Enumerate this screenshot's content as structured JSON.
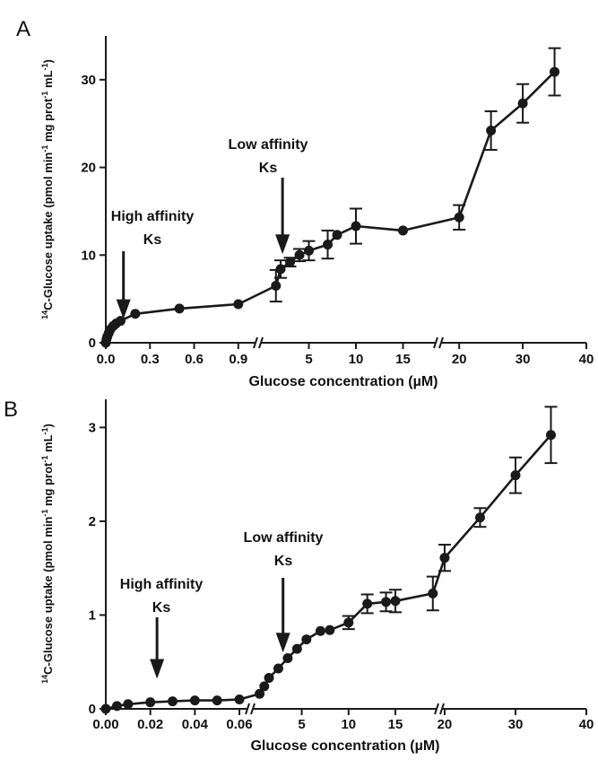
{
  "colors": {
    "ink": "#1a1a1a",
    "background": "#ffffff"
  },
  "chart_data": [
    {
      "panel": "A",
      "type": "line",
      "xlabel": "Glucose concentration (µM)",
      "ylabel": {
        "sup": "14",
        "main": "C-Glucose uptake (pmol min",
        "sup1": "-1",
        "mid": " mg prot",
        "sup2": "-1",
        "end": " mL",
        "sup3": "-1",
        "close": ")"
      },
      "ylim": [
        0,
        35
      ],
      "yticks": [
        "0",
        "10",
        "20",
        "30"
      ],
      "x_axis": "broken",
      "x_segments": [
        {
          "range": [
            0,
            0.95
          ],
          "ticks": [
            "0.0",
            "0.3",
            "0.6",
            "0.9"
          ]
        },
        {
          "range": [
            0.95,
            18
          ],
          "ticks": [
            "5",
            "10",
            "15"
          ]
        },
        {
          "range": [
            18,
            40
          ],
          "ticks": [
            "20",
            "30",
            "40"
          ]
        }
      ],
      "series": [
        {
          "points": [
            {
              "x": 0.0,
              "y": 0.0
            },
            {
              "x": 0.005,
              "y": 0.4
            },
            {
              "x": 0.01,
              "y": 0.7
            },
            {
              "x": 0.02,
              "y": 1.1
            },
            {
              "x": 0.03,
              "y": 1.5
            },
            {
              "x": 0.05,
              "y": 1.9
            },
            {
              "x": 0.07,
              "y": 2.2
            },
            {
              "x": 0.1,
              "y": 2.5
            },
            {
              "x": 0.2,
              "y": 3.3
            },
            {
              "x": 0.5,
              "y": 3.9
            },
            {
              "x": 0.9,
              "y": 4.4
            },
            {
              "x": 1.5,
              "y": 6.5,
              "err": 1.8
            },
            {
              "x": 2.0,
              "y": 8.4,
              "err": 1.0
            },
            {
              "x": 3.0,
              "y": 9.2,
              "err": 0.5
            },
            {
              "x": 4.0,
              "y": 10.0,
              "err": 0.7
            },
            {
              "x": 5.0,
              "y": 10.5,
              "err": 1.1
            },
            {
              "x": 7.0,
              "y": 11.2,
              "err": 1.6
            },
            {
              "x": 8.0,
              "y": 12.3
            },
            {
              "x": 10.0,
              "y": 13.3,
              "err": 2.0
            },
            {
              "x": 15.0,
              "y": 12.8
            },
            {
              "x": 20.0,
              "y": 14.3,
              "err": 1.4
            },
            {
              "x": 25.0,
              "y": 24.2,
              "err": 2.2
            },
            {
              "x": 30.0,
              "y": 27.3,
              "err": 2.2
            },
            {
              "x": 35.0,
              "y": 30.9,
              "err": 2.7
            }
          ]
        }
      ],
      "annotations": [
        {
          "lines": [
            "High affinity",
            "Ks"
          ],
          "x": 0.12,
          "arrow_y": 2.7
        },
        {
          "lines": [
            "Low affinity",
            "Ks"
          ],
          "x": 2.2,
          "arrow_y": 10.1
        }
      ]
    },
    {
      "panel": "B",
      "type": "line",
      "xlabel": "Glucose concentration (µM)",
      "ylabel": {
        "sup": "14",
        "main": "C-Glucose uptake (pmol min",
        "sup1": "-1",
        "mid": " mg prot",
        "sup2": "-1",
        "end": " mL",
        "sup3": "-1",
        "close": ")"
      },
      "ylim": [
        0,
        3.3
      ],
      "yticks": [
        "0",
        "1",
        "2",
        "3"
      ],
      "x_axis": "broken",
      "x_segments": [
        {
          "range": [
            0,
            0.062
          ],
          "ticks": [
            "0.00",
            "0.02",
            "0.04",
            "0.06"
          ]
        },
        {
          "range": [
            0.062,
            19.5
          ],
          "ticks": [
            "5",
            "10",
            "15"
          ]
        },
        {
          "range": [
            19.5,
            40
          ],
          "ticks": [
            "20",
            "30",
            "40"
          ]
        }
      ],
      "series": [
        {
          "points": [
            {
              "x": 0.0,
              "y": 0.0
            },
            {
              "x": 0.005,
              "y": 0.03
            },
            {
              "x": 0.01,
              "y": 0.05
            },
            {
              "x": 0.02,
              "y": 0.07
            },
            {
              "x": 0.03,
              "y": 0.08
            },
            {
              "x": 0.04,
              "y": 0.09
            },
            {
              "x": 0.05,
              "y": 0.09
            },
            {
              "x": 0.06,
              "y": 0.1
            },
            {
              "x": 0.5,
              "y": 0.16
            },
            {
              "x": 1.0,
              "y": 0.24
            },
            {
              "x": 1.5,
              "y": 0.33
            },
            {
              "x": 2.5,
              "y": 0.43
            },
            {
              "x": 3.5,
              "y": 0.54
            },
            {
              "x": 4.5,
              "y": 0.64
            },
            {
              "x": 5.5,
              "y": 0.74
            },
            {
              "x": 7.0,
              "y": 0.83
            },
            {
              "x": 8.0,
              "y": 0.84
            },
            {
              "x": 10.0,
              "y": 0.92,
              "err": 0.07
            },
            {
              "x": 12.0,
              "y": 1.12,
              "err": 0.1
            },
            {
              "x": 14.0,
              "y": 1.14,
              "err": 0.1
            },
            {
              "x": 15.0,
              "y": 1.15,
              "err": 0.12
            },
            {
              "x": 19.0,
              "y": 1.23,
              "err": 0.18
            },
            {
              "x": 20.0,
              "y": 1.61,
              "err": 0.14
            },
            {
              "x": 25.0,
              "y": 2.04,
              "err": 0.1
            },
            {
              "x": 30.0,
              "y": 2.49,
              "err": 0.19
            },
            {
              "x": 35.0,
              "y": 2.92,
              "err": 0.3
            }
          ]
        }
      ],
      "annotations": [
        {
          "lines": [
            "High affinity",
            "Ks"
          ],
          "x": 0.023,
          "arrow_y": 0.32
        },
        {
          "lines": [
            "Low affinity",
            "Ks"
          ],
          "x": 3.0,
          "arrow_y": 0.6
        }
      ]
    }
  ]
}
